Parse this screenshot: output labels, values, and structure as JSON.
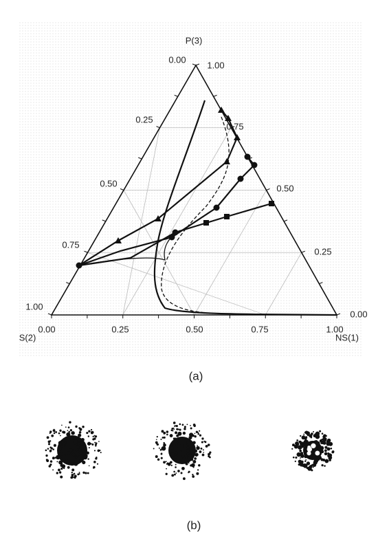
{
  "panel_a": {
    "vertex_labels": {
      "top": "P(3)",
      "left": "S(2)",
      "right": "NS(1)"
    },
    "left_ticks": [
      "0.00",
      "0.25",
      "0.50",
      "0.75",
      "1.00"
    ],
    "right_ticks": [
      "1.00",
      "0.75",
      "0.50",
      "0.25",
      "0.00"
    ],
    "bottom_ticks": [
      "0.00",
      "0.25",
      "0.50",
      "0.75",
      "1.00"
    ],
    "caption": "(a)"
  },
  "panel_b": {
    "caption": "(b)"
  }
}
